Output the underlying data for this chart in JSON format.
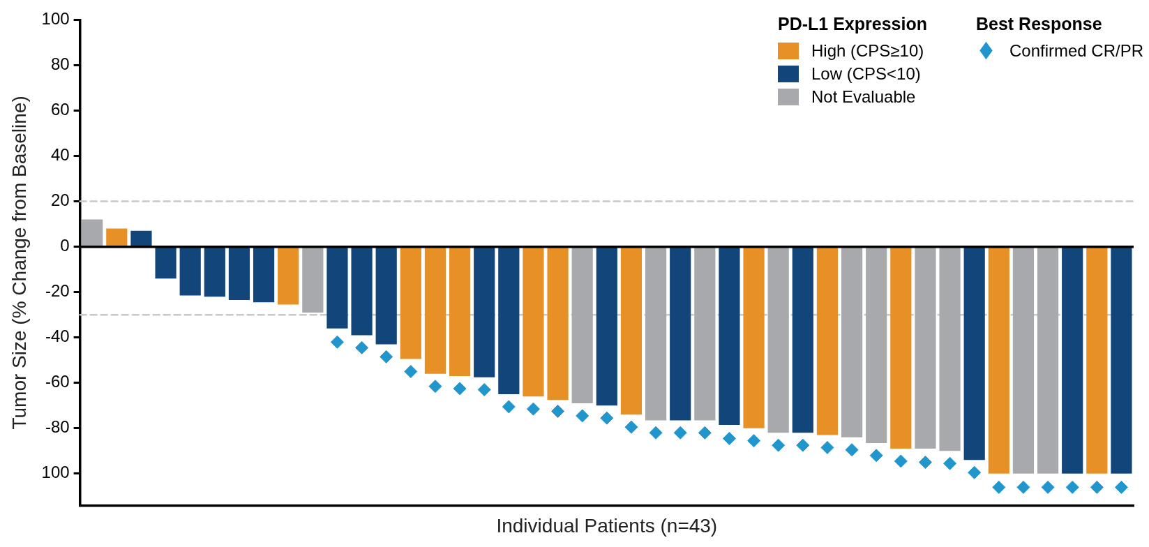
{
  "chart_data": {
    "type": "bar",
    "stacked": true,
    "ylabel": "Tumor Size (% Change from Baseline)",
    "xlabel": "Individual Patients (n=43)",
    "legend_title": "PD-L1 Expression",
    "legend": "top right",
    "grid": false,
    "tick_labels": "y",
    "annotations": [
      "Best Response"
    ],
    "categories": [
      null,
      null,
      null,
      null,
      null,
      null,
      null,
      null,
      null,
      null,
      null,
      null,
      null,
      null,
      null,
      null,
      null,
      null,
      null,
      null,
      null,
      null,
      null,
      null,
      null,
      null,
      null,
      null,
      null,
      null,
      null,
      null,
      null,
      null,
      null,
      null,
      null,
      null,
      null,
      null,
      null,
      null,
      null
    ],
    "ylim": [
      -114,
      100
    ],
    "yticks": [
      100,
      80,
      60,
      40,
      20,
      0,
      -20,
      -40,
      -60,
      -80,
      {
        "value": -100,
        "label": "100"
      }
    ],
    "ref_lines": [
      {
        "axis": "y",
        "value": 20,
        "color": "#c8c8c8",
        "line_style": "dashed"
      },
      {
        "axis": "y",
        "value": -30,
        "color": "#c8c8c8",
        "line_style": "dashed"
      }
    ],
    "series": [
      {
        "name": "High (CPS≥10)",
        "color": "#e69025",
        "values": [
          null,
          8,
          null,
          null,
          null,
          null,
          null,
          null,
          -25.5,
          null,
          null,
          null,
          null,
          -49.5,
          -56,
          -57,
          null,
          null,
          -66,
          -67.5,
          null,
          null,
          -74,
          null,
          null,
          null,
          null,
          -80,
          null,
          null,
          -83,
          null,
          null,
          -89,
          null,
          null,
          null,
          -100,
          null,
          null,
          null,
          -100,
          null
        ]
      },
      {
        "name": "Low (CPS<10)",
        "color": "#12467b",
        "values": [
          null,
          null,
          7,
          -14,
          -21.5,
          -22,
          -23.5,
          -24.5,
          null,
          null,
          -36,
          -39,
          -43,
          null,
          null,
          null,
          -57.5,
          -65,
          null,
          null,
          null,
          -70,
          null,
          null,
          -76.5,
          null,
          -78.5,
          null,
          null,
          -82,
          null,
          null,
          null,
          null,
          null,
          null,
          -94,
          null,
          null,
          null,
          -100,
          null,
          -100
        ]
      },
      {
        "name": "Not Evaluable",
        "color": "#a8a9ac",
        "values": [
          12,
          null,
          null,
          null,
          null,
          null,
          null,
          null,
          null,
          -29,
          null,
          null,
          null,
          null,
          null,
          null,
          null,
          null,
          null,
          null,
          -69,
          null,
          null,
          -76.5,
          null,
          -76.5,
          null,
          null,
          -82,
          null,
          null,
          -84,
          -86.5,
          null,
          -89,
          -90,
          null,
          null,
          -100,
          -100,
          null,
          null,
          null
        ]
      },
      {
        "name": "Confirmed CR/PR",
        "type": "scatter",
        "marker": "diamond",
        "color": "#2196cc",
        "values": [
          null,
          null,
          null,
          null,
          null,
          null,
          null,
          null,
          null,
          null,
          -42,
          -44.5,
          -48.5,
          -55,
          -61.5,
          -62.5,
          -63,
          -70.5,
          -71.5,
          -72.5,
          -74.5,
          -75.5,
          -79.5,
          -82,
          -82,
          -82,
          -84.5,
          -85.5,
          -87.5,
          -87.5,
          -88.5,
          -89.5,
          -92,
          -94.5,
          -95,
          -95.5,
          -99.5,
          -106,
          -106,
          -106,
          -106,
          -106,
          -106
        ]
      }
    ]
  }
}
